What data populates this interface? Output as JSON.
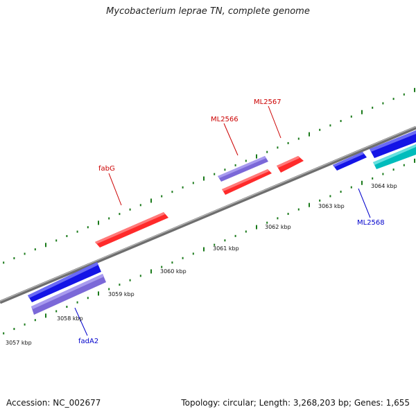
{
  "title": "Mycobacterium leprae TN, complete genome",
  "footer": {
    "accession": "Accession: NC_002677",
    "stats": "Topology: circular; Length: 3,268,203 bp; Genes: 1,655"
  },
  "tick_labels": [
    "3057 kbp",
    "3058 kbp",
    "3059 kbp",
    "3060 kbp",
    "3061 kbp",
    "3062 kbp",
    "3063 kbp",
    "3064 kbp"
  ],
  "gene_labels": {
    "fabG": "fabG",
    "ML2566": "ML2566",
    "ML2567": "ML2567",
    "ML2568": "ML2568",
    "fadA2": "fadA2"
  },
  "colors": {
    "forward_gene": "#ff0000",
    "reverse_gene": "#0000ff",
    "forward_alt": "#7b68d8",
    "cyan_gene": "#00c8c8",
    "backbone": "#808080",
    "tick": "#1a7a1a",
    "label_forward": "#cc0000",
    "label_reverse": "#0000cc"
  }
}
